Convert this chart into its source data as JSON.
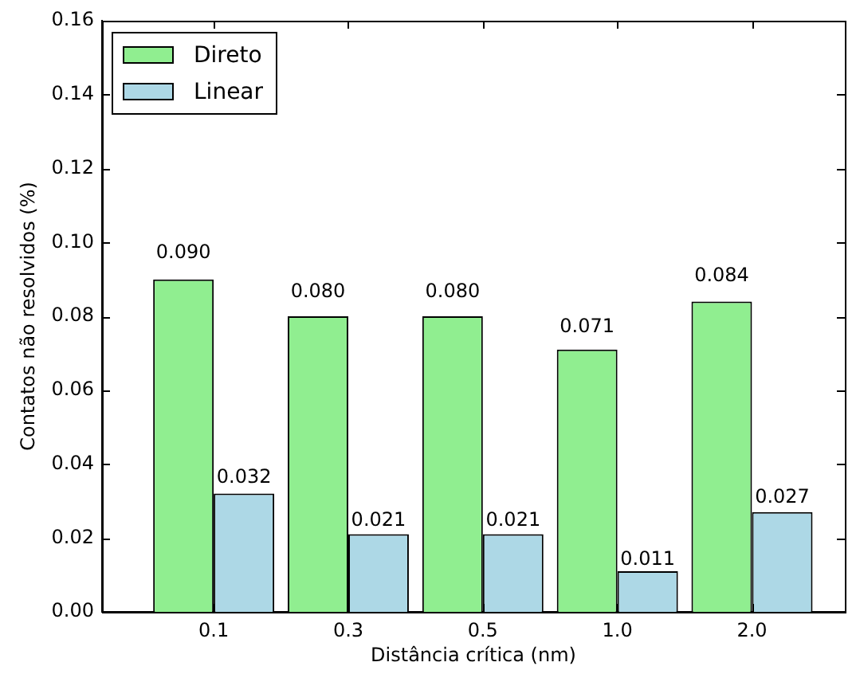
{
  "chart_data": {
    "type": "bar",
    "xlabel": "Distância crítica (nm)",
    "ylabel": "Contatos não resolvidos (%)",
    "categories": [
      "0.1",
      "0.3",
      "0.5",
      "1.0",
      "2.0"
    ],
    "series": [
      {
        "name": "Direto",
        "color": "#90ee90",
        "values": [
          0.09,
          0.08,
          0.08,
          0.071,
          0.084
        ],
        "value_labels": [
          "0.090",
          "0.080",
          "0.080",
          "0.071",
          "0.084"
        ]
      },
      {
        "name": "Linear",
        "color": "#add8e6",
        "values": [
          0.032,
          0.021,
          0.021,
          0.011,
          0.027
        ],
        "value_labels": [
          "0.032",
          "0.021",
          "0.021",
          "0.011",
          "0.027"
        ]
      }
    ],
    "ylim": [
      0,
      0.16
    ],
    "yticks": [
      {
        "value": 0,
        "label": "0.00"
      },
      0.02,
      0.04,
      0.06,
      0.08,
      {
        "value": 0.1,
        "label": "0.10"
      },
      0.12,
      0.14,
      0.16
    ],
    "legend": "top left"
  }
}
